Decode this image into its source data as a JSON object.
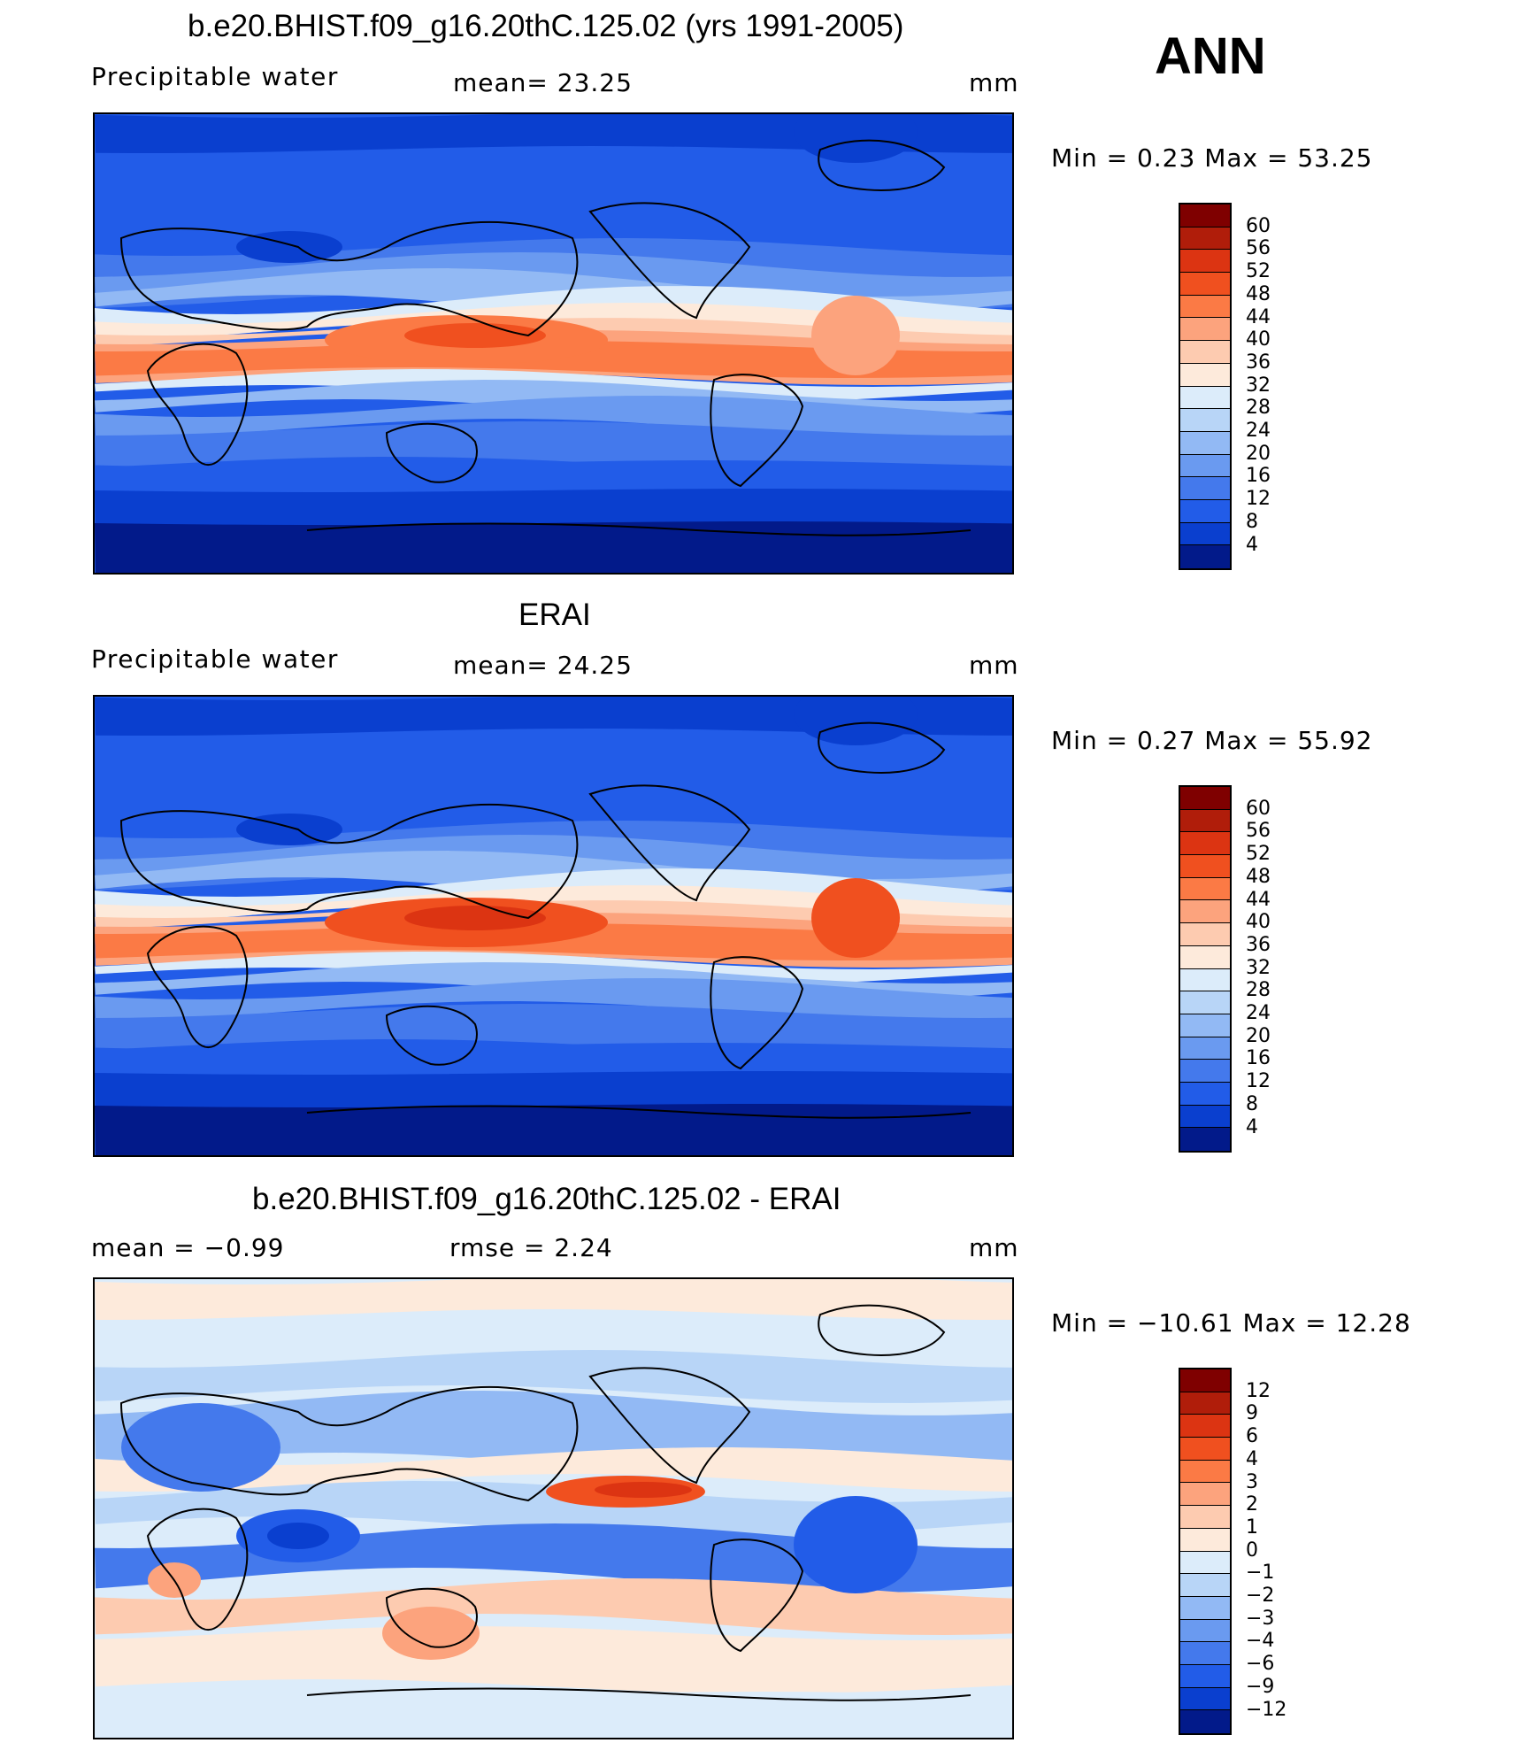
{
  "header": {
    "season": "ANN"
  },
  "panels": [
    {
      "id": "model",
      "title": "b.e20.BHIST.f09_g16.20thC.125.02 (yrs 1991-2005)",
      "left_label": "Precipitable  water",
      "center_label": "mean=   23.25",
      "units": "mm",
      "min_max": "Min  =     0.23  Max  =     53.25",
      "colorbar": {
        "labels": [
          "60",
          "56",
          "52",
          "48",
          "44",
          "40",
          "36",
          "32",
          "28",
          "24",
          "20",
          "16",
          "12",
          "8",
          "4"
        ],
        "colors": [
          "#7f0000",
          "#b01d0a",
          "#dc3412",
          "#f0501f",
          "#fb7a45",
          "#fca37d",
          "#fdcbb0",
          "#fdeadb",
          "#dcecfa",
          "#b8d5f7",
          "#92b9f4",
          "#6a9af0",
          "#4479ec",
          "#225ce8",
          "#0a3fcf",
          "#021a8a"
        ]
      }
    },
    {
      "id": "obs",
      "title": "ERAI",
      "left_label": "Precipitable  water",
      "center_label": "mean=   24.25",
      "units": "mm",
      "min_max": "Min  =     0.27  Max  =     55.92",
      "colorbar": {
        "labels": [
          "60",
          "56",
          "52",
          "48",
          "44",
          "40",
          "36",
          "32",
          "28",
          "24",
          "20",
          "16",
          "12",
          "8",
          "4"
        ],
        "colors": [
          "#7f0000",
          "#b01d0a",
          "#dc3412",
          "#f0501f",
          "#fb7a45",
          "#fca37d",
          "#fdcbb0",
          "#fdeadb",
          "#dcecfa",
          "#b8d5f7",
          "#92b9f4",
          "#6a9af0",
          "#4479ec",
          "#225ce8",
          "#0a3fcf",
          "#021a8a"
        ]
      }
    },
    {
      "id": "diff",
      "title": "b.e20.BHIST.f09_g16.20thC.125.02 - ERAI",
      "left_label": "mean  =    −0.99",
      "center_label": "rmse  =     2.24",
      "units": "mm",
      "min_max": "Min  = −10.61  Max  =    12.28",
      "colorbar": {
        "labels": [
          "12",
          "9",
          "6",
          "4",
          "3",
          "2",
          "1",
          "0",
          "−1",
          "−2",
          "−3",
          "−4",
          "−6",
          "−9",
          "−12"
        ],
        "colors": [
          "#7f0000",
          "#b01d0a",
          "#dc3412",
          "#f0501f",
          "#fb7a45",
          "#fca37d",
          "#fdcbb0",
          "#fdeadb",
          "#dcecfa",
          "#b8d5f7",
          "#92b9f4",
          "#6a9af0",
          "#4479ec",
          "#225ce8",
          "#0a3fcf",
          "#021a8a"
        ]
      }
    }
  ],
  "map_colors": {
    "pole": "#021a8a",
    "high_lat": "#0a3fcf",
    "mid_lat": "#225ce8",
    "sub_mid": "#4479ec",
    "subtrop": "#6a9af0",
    "subtrop2": "#92b9f4",
    "pale_blue": "#b8d5f7",
    "pale": "#dcecfa",
    "cream": "#fdeadb",
    "peach": "#fdcbb0",
    "salmon": "#fca37d",
    "orange": "#fb7a45",
    "red_orange": "#f0501f",
    "red": "#dc3412",
    "land_line": "#000000"
  }
}
